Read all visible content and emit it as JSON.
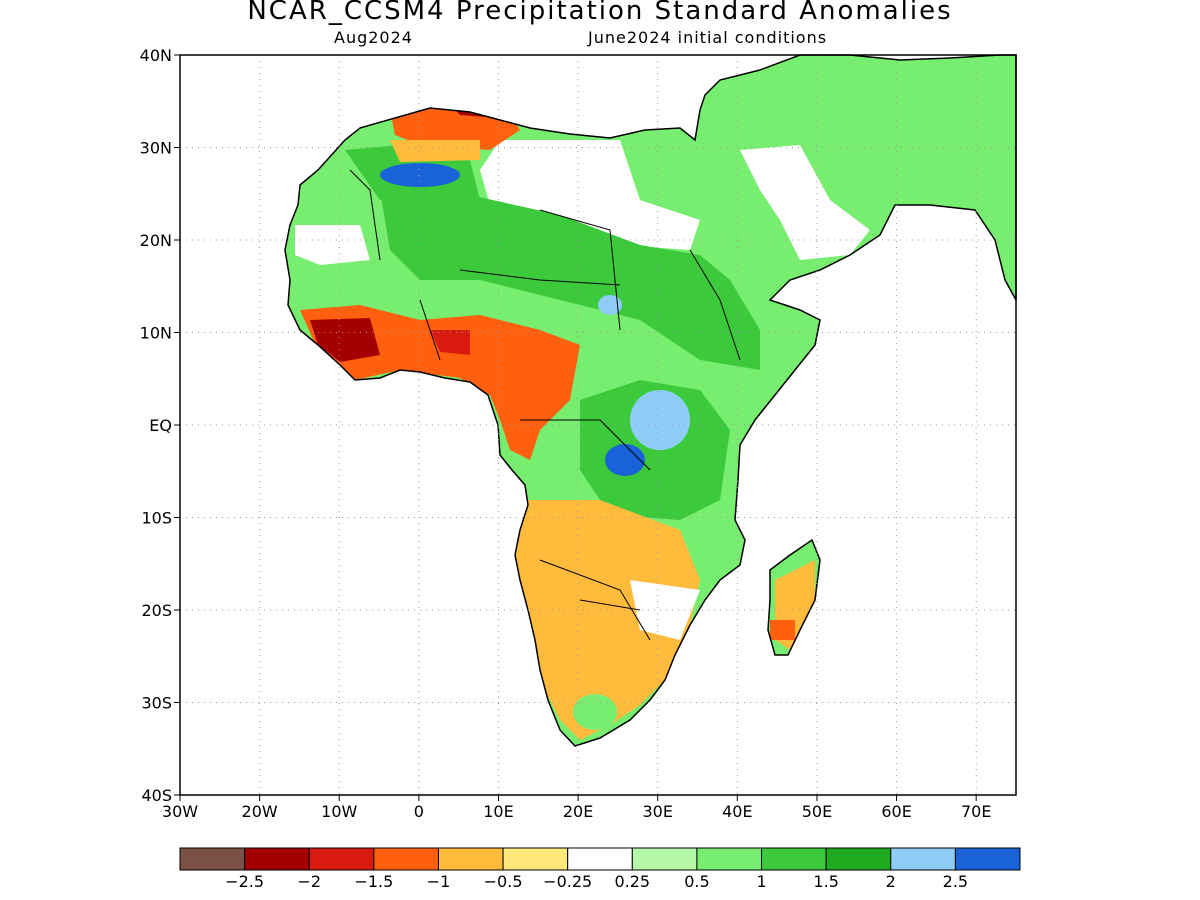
{
  "title": "NCAR_CCSM4 Precipitation Standard Anomalies",
  "subtitle_left": "Aug2024",
  "subtitle_right": "June2024 initial conditions",
  "map": {
    "lon_range": [
      -30,
      75
    ],
    "lat_range": [
      -40,
      40
    ],
    "lat_ticks": [
      {
        "value": 40,
        "label": "40N"
      },
      {
        "value": 30,
        "label": "30N"
      },
      {
        "value": 20,
        "label": "20N"
      },
      {
        "value": 10,
        "label": "10N"
      },
      {
        "value": 0,
        "label": "EQ"
      },
      {
        "value": -10,
        "label": "10S"
      },
      {
        "value": -20,
        "label": "20S"
      },
      {
        "value": -30,
        "label": "30S"
      },
      {
        "value": -40,
        "label": "40S"
      }
    ],
    "lon_ticks": [
      {
        "value": -30,
        "label": "30W"
      },
      {
        "value": -20,
        "label": "20W"
      },
      {
        "value": -10,
        "label": "10W"
      },
      {
        "value": 0,
        "label": "0"
      },
      {
        "value": 10,
        "label": "10E"
      },
      {
        "value": 20,
        "label": "20E"
      },
      {
        "value": 30,
        "label": "30E"
      },
      {
        "value": 40,
        "label": "40E"
      },
      {
        "value": 50,
        "label": "50E"
      },
      {
        "value": 60,
        "label": "60E"
      },
      {
        "value": 70,
        "label": "70E"
      }
    ],
    "grid": true
  },
  "colorbar": {
    "colors": [
      "#7b5045",
      "#a40000",
      "#d81a10",
      "#ff6010",
      "#ffbb3c",
      "#ffe87a",
      "#ffffff",
      "#b4f8a8",
      "#78ee70",
      "#3cca3c",
      "#1fab1f",
      "#8ecdf8",
      "#1a62d8"
    ],
    "labels": [
      "−2.5",
      "−2",
      "−1.5",
      "−1",
      "−0.5",
      "−0.25",
      "0.25",
      "0.5",
      "1",
      "1.5",
      "2",
      "2.5"
    ]
  },
  "colors": {
    "dry_strong": "#a40000",
    "dry": "#ff6010",
    "dry_light": "#ffbb3c",
    "wet_light": "#78ee70",
    "wet": "#3cca3c",
    "wet_strong": "#1a62d8"
  }
}
